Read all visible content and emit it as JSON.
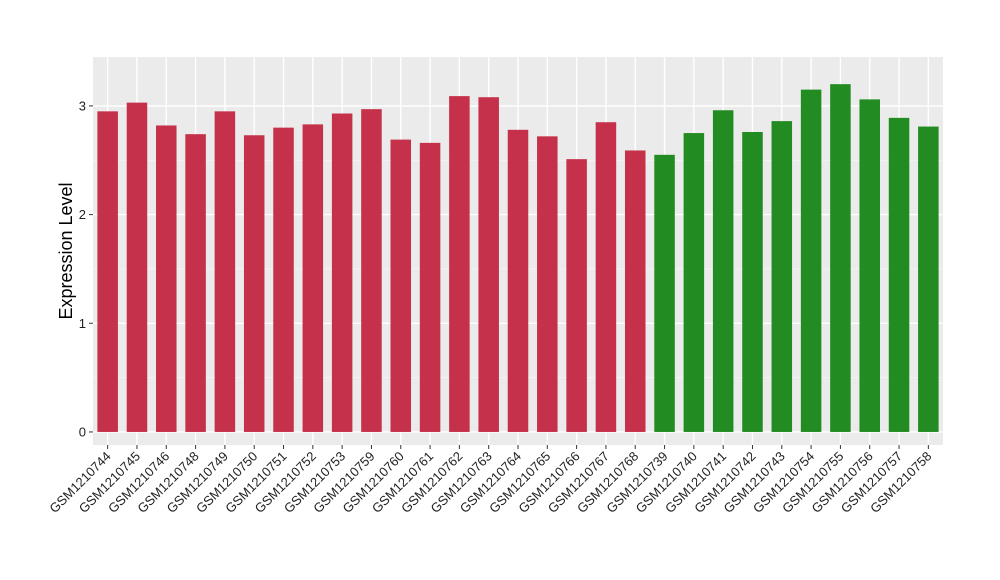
{
  "chart_data": {
    "type": "bar",
    "xlabel": "",
    "ylabel": "Expression Level",
    "ylim": [
      -0.12,
      3.45
    ],
    "yticks": [
      0,
      1,
      2,
      3
    ],
    "grid": true,
    "background": "#ebebeb",
    "categories": [
      "GSM1210744",
      "GSM1210745",
      "GSM1210746",
      "GSM1210748",
      "GSM1210749",
      "GSM1210750",
      "GSM1210751",
      "GSM1210752",
      "GSM1210753",
      "GSM1210759",
      "GSM1210760",
      "GSM1210761",
      "GSM1210762",
      "GSM1210763",
      "GSM1210764",
      "GSM1210765",
      "GSM1210766",
      "GSM1210767",
      "GSM1210768",
      "GSM1210739",
      "GSM1210740",
      "GSM1210741",
      "GSM1210742",
      "GSM1210743",
      "GSM1210754",
      "GSM1210755",
      "GSM1210756",
      "GSM1210757",
      "GSM1210758"
    ],
    "values": [
      2.95,
      3.03,
      2.82,
      2.74,
      2.95,
      2.73,
      2.8,
      2.83,
      2.93,
      2.97,
      2.69,
      2.66,
      3.09,
      3.08,
      2.78,
      2.72,
      2.51,
      2.85,
      2.59,
      2.55,
      2.75,
      2.96,
      2.76,
      2.86,
      3.15,
      3.2,
      3.06,
      2.89,
      2.81
    ],
    "groups": [
      "a",
      "a",
      "a",
      "a",
      "a",
      "a",
      "a",
      "a",
      "a",
      "a",
      "a",
      "a",
      "a",
      "a",
      "a",
      "a",
      "a",
      "a",
      "a",
      "b",
      "b",
      "b",
      "b",
      "b",
      "b",
      "b",
      "b",
      "b",
      "b"
    ],
    "colors": {
      "a": "#c5314a",
      "b": "#228b22"
    }
  }
}
